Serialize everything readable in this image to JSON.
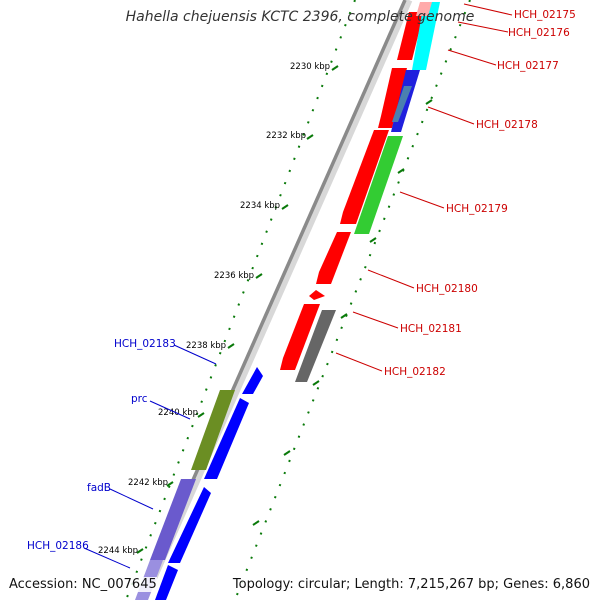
{
  "title": "Hahella chejuensis KCTC 2396, complete genome",
  "footer": {
    "accession": "Accession: NC_007645",
    "summary": "Topology: circular; Length: 7,215,267 bp; Genes: 6,860"
  },
  "ticks": [
    "2230 kbp",
    "2232 kbp",
    "2234 kbp",
    "2236 kbp",
    "2238 kbp",
    "2240 kbp",
    "2242 kbp",
    "2244 kbp"
  ],
  "gene_labels_right": [
    "HCH_02175",
    "HCH_02176",
    "HCH_02177",
    "HCH_02178",
    "HCH_02179",
    "HCH_02180",
    "HCH_02181",
    "HCH_02182"
  ],
  "gene_labels_left": [
    "HCH_02183",
    "prc",
    "fadB",
    "HCH_02186"
  ],
  "colors": {
    "forward_cds": "#ff0000",
    "reverse_cds": "#0000ff",
    "backbone": "#888888",
    "gc_tick": "#0a7a0a",
    "label_right": "#cc0000",
    "label_left": "#0000cc"
  }
}
